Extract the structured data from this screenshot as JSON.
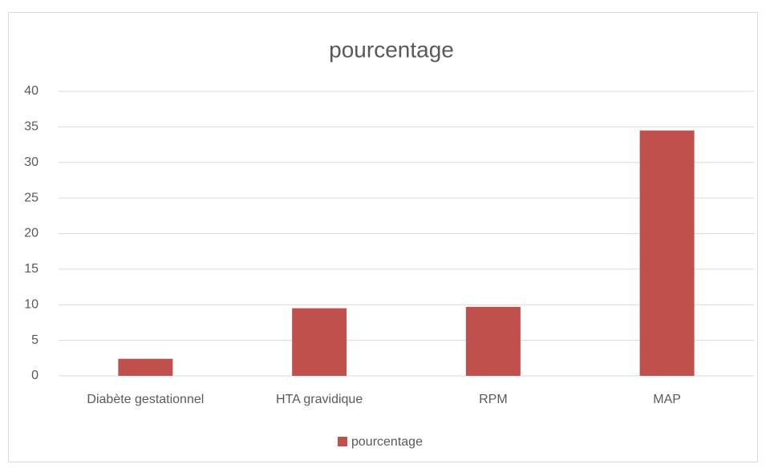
{
  "chart_data": {
    "type": "bar",
    "title": "pourcentage",
    "categories": [
      "Diabète gestationnel",
      "HTA gravidique",
      "RPM",
      "MAP"
    ],
    "series": [
      {
        "name": "pourcentage",
        "color": "#c0504d",
        "values": [
          2.4,
          9.5,
          9.7,
          34.5
        ]
      }
    ],
    "ylim": [
      0,
      40
    ],
    "yticks": [
      0,
      5,
      10,
      15,
      20,
      25,
      30,
      35,
      40
    ],
    "grid": true,
    "legend": "bottom"
  }
}
